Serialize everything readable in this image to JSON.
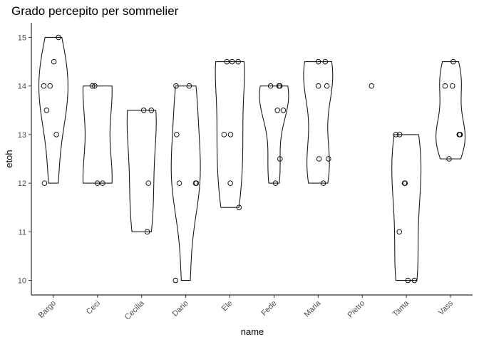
{
  "chart_data": {
    "type": "violin",
    "title": "Grado percepito per sommelier",
    "xlabel": "name",
    "ylabel": "etoh",
    "ylim": [
      9.7,
      15.3
    ],
    "yticks": [
      10,
      11,
      12,
      13,
      14,
      15
    ],
    "grid": false,
    "categories": [
      "Bargo",
      "Ceci",
      "Cecilia",
      "Dario",
      "Ele",
      "Fede",
      "Maria",
      "Pietro",
      "Tama",
      "Vass"
    ],
    "groups": [
      {
        "name": "Bargo",
        "values": [
          15,
          14.5,
          14,
          14,
          13.5,
          13,
          12
        ]
      },
      {
        "name": "Ceci",
        "values": [
          14,
          14,
          12,
          12
        ]
      },
      {
        "name": "Cecilia",
        "values": [
          13.5,
          13.5,
          12,
          11
        ]
      },
      {
        "name": "Dario",
        "values": [
          14,
          14,
          13,
          12,
          12,
          12,
          10
        ]
      },
      {
        "name": "Ele",
        "values": [
          14.5,
          14.5,
          14.5,
          13,
          13,
          12,
          11.5
        ]
      },
      {
        "name": "Fede",
        "values": [
          14,
          14,
          14,
          13.5,
          13.5,
          12.5,
          12
        ]
      },
      {
        "name": "Maria",
        "values": [
          14.5,
          14.5,
          14,
          14,
          12.5,
          12.5,
          12
        ]
      },
      {
        "name": "Pietro",
        "values": [
          14
        ]
      },
      {
        "name": "Tama",
        "values": [
          13,
          13,
          12,
          12,
          11,
          10,
          10
        ]
      },
      {
        "name": "Vass",
        "values": [
          14.5,
          14,
          14,
          13,
          13,
          13,
          12.5
        ]
      }
    ]
  }
}
